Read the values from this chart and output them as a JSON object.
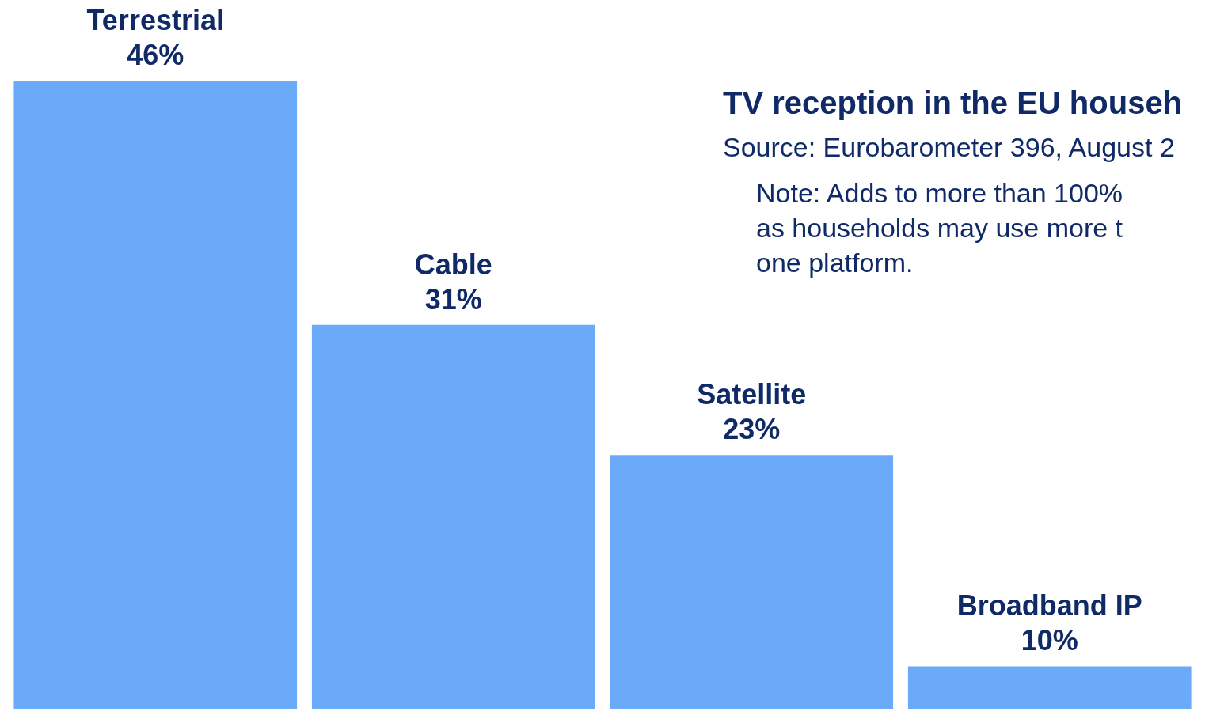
{
  "chart_data": {
    "type": "bar",
    "title": "TV reception in the EU househ",
    "subtitle": "Source: Eurobarometer 396, August 2",
    "annotations": [
      "Note: Adds to more than 100% as households may use more t one platform."
    ],
    "categories": [
      "Terrestrial",
      "Cable",
      "Satellite",
      "Broadband IP"
    ],
    "values": [
      46,
      31,
      23,
      10
    ],
    "color": "#6aaaf8",
    "value_labels": [
      "46%",
      "31%",
      "23%",
      "10%"
    ]
  }
}
